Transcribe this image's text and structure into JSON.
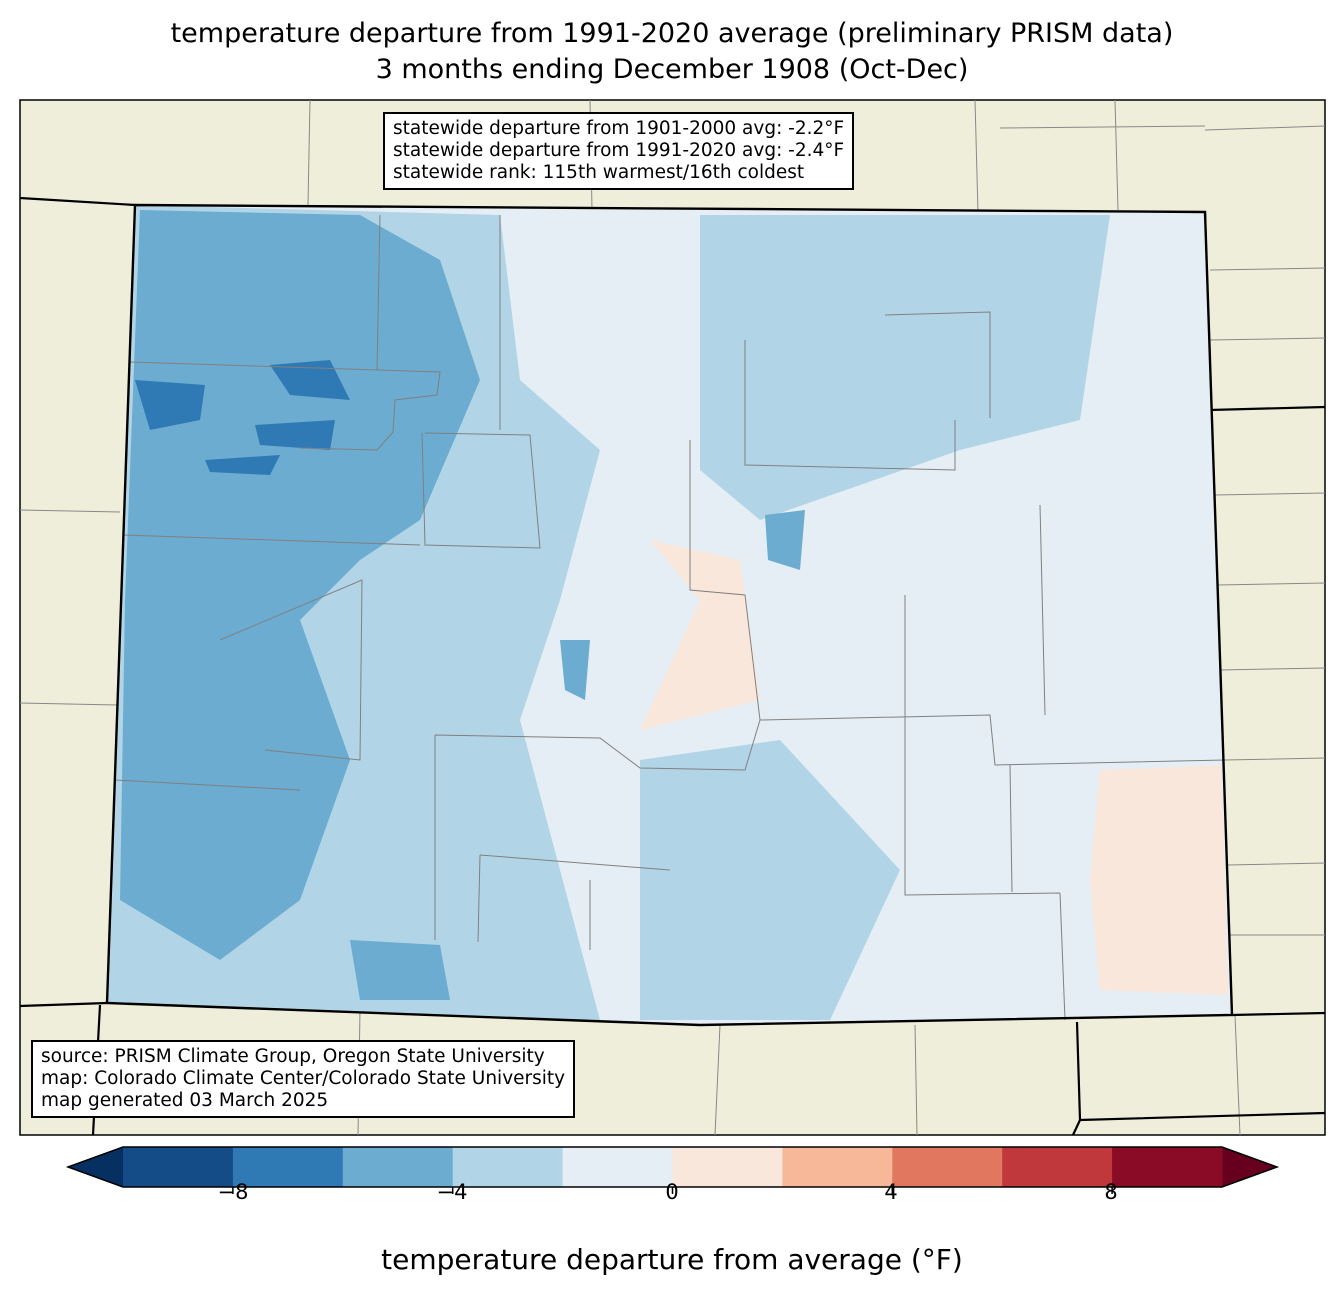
{
  "title": {
    "line1": "temperature departure from 1991-2020 average (preliminary PRISM data)",
    "line2": "3 months ending December 1908 (Oct-Dec)"
  },
  "stats": {
    "line1": "statewide departure from 1901-2000 avg: -2.2°F",
    "line2": "statewide departure from 1991-2020 avg: -2.4°F",
    "line3": "statewide rank: 115th warmest/16th coldest"
  },
  "source": {
    "line1": "source: PRISM Climate Group, Oregon State University",
    "line2": "map: Colorado Climate Center/Colorado State University",
    "line3": "map generated 03 March 2025"
  },
  "colorbar": {
    "label": "temperature departure from average (°F)",
    "ticks": [
      "−8",
      "−4",
      "0",
      "4",
      "8"
    ],
    "bins": [
      -10,
      -8,
      -6,
      -4,
      -2,
      0,
      2,
      4,
      6,
      8,
      10
    ],
    "colors": [
      "#144c87",
      "#2f79b5",
      "#6bacd0",
      "#b1d5e7",
      "#e4eef4",
      "#fae7dc",
      "#f7b799",
      "#e0775e",
      "#c0383b",
      "#8a0b25"
    ],
    "under_color": "#053061",
    "over_color": "#67001f"
  },
  "colors": {
    "land": "#efeedb",
    "state_border": "#000000",
    "county_border": "#808080"
  }
}
